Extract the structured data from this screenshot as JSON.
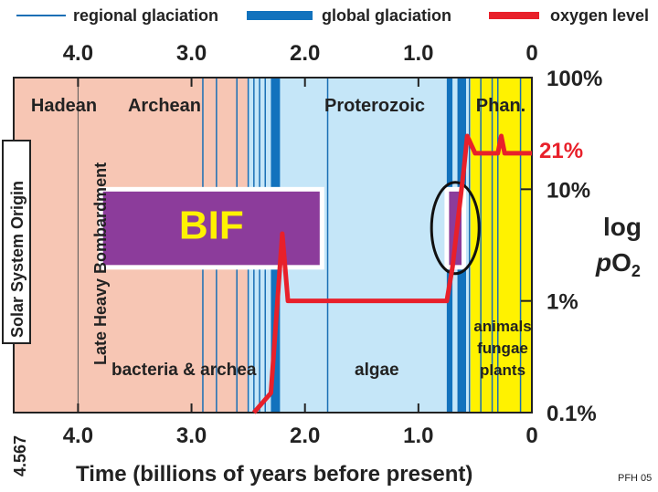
{
  "legend": {
    "regional": "regional glaciation",
    "global": "global glaciation",
    "oxygen": "oxygen level"
  },
  "colors": {
    "hadean_archean": "#f7c6b4",
    "proterozoic": "#c5e6f8",
    "phanerozoic": "#fff200",
    "regional_line": "#1a6fb5",
    "global_band": "#1272bd",
    "oxygen": "#e8202a",
    "bif": "#8c3c9b",
    "bif_text": "#fff200",
    "dark_text": "#222222"
  },
  "eons": [
    {
      "name": "Hadean",
      "start": 4.567,
      "end": 4.0
    },
    {
      "name": "Archean",
      "start": 4.0,
      "end": 2.5
    },
    {
      "name": "Proterozoic",
      "start": 2.5,
      "end": 0.541
    },
    {
      "name": "Phan.",
      "start": 0.541,
      "end": 0.0
    }
  ],
  "life_labels": {
    "bacteria": "bacteria & archea",
    "algae": "algae",
    "animals": "animals",
    "fungae": "fungae",
    "plants": "plants"
  },
  "event_labels": {
    "solar": "Solar System Origin",
    "lhb": "Late Heavy Bombardment",
    "bif": "BIF",
    "start_age": "4.567"
  },
  "footer": {
    "credit": "PFH 05"
  },
  "chart_data": {
    "type": "line",
    "xlabel": "Time (billions of years before present)",
    "ylabel_main": "log",
    "ylabel_sub_p": "p",
    "ylabel_sub_o": "O",
    "ylabel_sub_2": "2",
    "x_ticks": [
      "4.0",
      "3.0",
      "2.0",
      "1.0",
      "0"
    ],
    "x_tick_values": [
      4.0,
      3.0,
      2.0,
      1.0,
      0.0
    ],
    "y_ticks": [
      "100%",
      "10%",
      "1%",
      "0.1%"
    ],
    "y_tick_values": [
      100,
      10,
      1,
      0.1
    ],
    "y_scale": "log",
    "xlim": [
      4.567,
      0.0
    ],
    "ylim": [
      0.1,
      100
    ],
    "oxygen_series": {
      "name": "oxygen level",
      "x": [
        2.45,
        2.3,
        2.2,
        2.15,
        0.75,
        0.7,
        0.6,
        0.57,
        0.5,
        0.3,
        0.27,
        0.24,
        0.2,
        0.0
      ],
      "y": [
        0.1,
        0.15,
        4.0,
        1.0,
        1.0,
        2.0,
        15.0,
        30.0,
        21.0,
        21.0,
        30.0,
        21.0,
        21.0,
        21.0
      ],
      "end_label": "21%"
    },
    "regional_glaciations": [
      2.9,
      2.78,
      2.6,
      2.5,
      2.45,
      2.4,
      2.35,
      1.8,
      0.65,
      0.55,
      0.45,
      0.35,
      0.3,
      0.1
    ],
    "global_glaciations": [
      {
        "start": 2.3,
        "end": 2.22
      },
      {
        "start": 0.75,
        "end": 0.7
      },
      {
        "start": 0.65,
        "end": 0.58
      }
    ],
    "bif_periods": [
      {
        "start": 3.8,
        "end": 1.85,
        "ymin": 2.0,
        "ymax": 10.0
      },
      {
        "start": 0.75,
        "end": 0.6,
        "ymin": 2.0,
        "ymax": 10.0
      }
    ]
  }
}
